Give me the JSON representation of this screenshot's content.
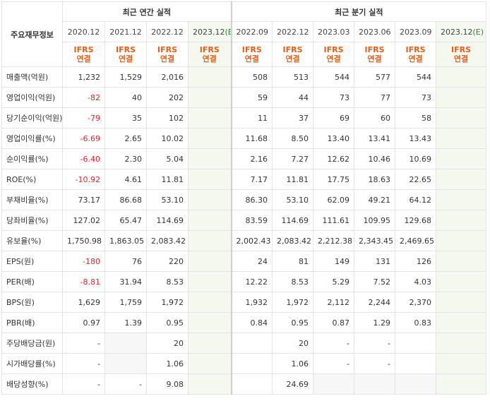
{
  "header": {
    "corner_label": "주요재무정보",
    "annual_title": "최근 연간 실적",
    "quarter_title": "최근 분기 실적",
    "periods": [
      {
        "label": "2020.12",
        "tag": "",
        "estimate": false
      },
      {
        "label": "2021.12",
        "tag": "",
        "estimate": false
      },
      {
        "label": "2022.12",
        "tag": "",
        "estimate": false
      },
      {
        "label": "2023.12",
        "tag": "(E)",
        "estimate": true
      },
      {
        "label": "2022.09",
        "tag": "",
        "estimate": false
      },
      {
        "label": "2022.12",
        "tag": "",
        "estimate": false
      },
      {
        "label": "2023.03",
        "tag": "",
        "estimate": false
      },
      {
        "label": "2023.06",
        "tag": "",
        "estimate": false
      },
      {
        "label": "2023.09",
        "tag": "",
        "estimate": false
      },
      {
        "label": "2023.12",
        "tag": "(E)",
        "estimate": true
      }
    ],
    "basis_line1": "IFRS",
    "basis_line2": "연결"
  },
  "rows": [
    {
      "label": "매출액(억원)",
      "values": [
        "1,232",
        "1,529",
        "2,016",
        "",
        "508",
        "513",
        "544",
        "577",
        "544",
        ""
      ]
    },
    {
      "label": "영업이익(억원)",
      "values": [
        "-82",
        "40",
        "202",
        "",
        "59",
        "44",
        "73",
        "77",
        "73",
        ""
      ]
    },
    {
      "label": "당기순이익(억원)",
      "values": [
        "-79",
        "35",
        "102",
        "",
        "11",
        "37",
        "69",
        "60",
        "58",
        ""
      ]
    },
    {
      "label": "영업이익률(%)",
      "values": [
        "-6.69",
        "2.65",
        "10.02",
        "",
        "11.68",
        "8.50",
        "13.40",
        "13.41",
        "13.43",
        ""
      ]
    },
    {
      "label": "순이익률(%)",
      "values": [
        "-6.40",
        "2.30",
        "5.04",
        "",
        "2.16",
        "7.27",
        "12.62",
        "10.46",
        "10.69",
        ""
      ]
    },
    {
      "label": "ROE(%)",
      "values": [
        "-10.92",
        "4.61",
        "11.81",
        "",
        "7.17",
        "11.81",
        "17.75",
        "18.63",
        "22.65",
        ""
      ]
    },
    {
      "label": "부채비율(%)",
      "values": [
        "73.17",
        "86.68",
        "53.10",
        "",
        "86.30",
        "53.10",
        "62.09",
        "49.21",
        "64.12",
        ""
      ]
    },
    {
      "label": "당좌비율(%)",
      "values": [
        "127.02",
        "65.47",
        "114.69",
        "",
        "83.59",
        "114.69",
        "111.61",
        "109.95",
        "129.68",
        ""
      ]
    },
    {
      "label": "유보율(%)",
      "values": [
        "1,750.98",
        "1,863.05",
        "2,083.42",
        "",
        "2,002.43",
        "2,083.42",
        "2,212.38",
        "2,343.45",
        "2,469.65",
        ""
      ]
    },
    {
      "label": "EPS(원)",
      "values": [
        "-180",
        "76",
        "220",
        "",
        "24",
        "81",
        "149",
        "131",
        "126",
        ""
      ]
    },
    {
      "label": "PER(배)",
      "values": [
        "-8.81",
        "31.94",
        "8.53",
        "",
        "12.22",
        "8.53",
        "5.29",
        "7.52",
        "4.03",
        ""
      ]
    },
    {
      "label": "BPS(원)",
      "values": [
        "1,629",
        "1,759",
        "1,972",
        "",
        "1,932",
        "1,972",
        "2,112",
        "2,244",
        "2,370",
        ""
      ]
    },
    {
      "label": "PBR(배)",
      "values": [
        "0.97",
        "1.39",
        "0.95",
        "",
        "0.84",
        "0.95",
        "0.87",
        "1.29",
        "0.83",
        ""
      ]
    },
    {
      "label": "주당배당금(원)",
      "values": [
        "-",
        null,
        "20",
        "",
        "",
        "20",
        "-",
        "-",
        "",
        ""
      ]
    },
    {
      "label": "시가배당률(%)",
      "values": [
        "-",
        null,
        "1.06",
        "",
        "",
        "1.06",
        "-",
        "-",
        "",
        ""
      ]
    },
    {
      "label": "배당성향(%)",
      "values": [
        "-",
        "-",
        "9.08",
        "",
        "",
        "24.69",
        null,
        null,
        null,
        ""
      ]
    }
  ],
  "colors": {
    "negative": "#e2262a",
    "basis": "#e65e16",
    "estimate_bg": "#f4f8ef",
    "empty_bg": "#f7f7f7"
  }
}
